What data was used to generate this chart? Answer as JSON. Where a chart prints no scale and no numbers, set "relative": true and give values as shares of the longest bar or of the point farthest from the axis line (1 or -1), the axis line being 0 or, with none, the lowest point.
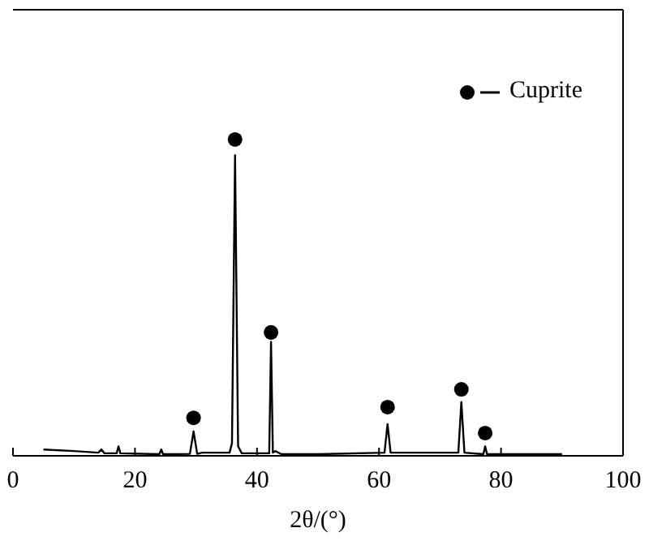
{
  "chart_data": {
    "type": "line",
    "relative": true,
    "xlabel": "2θ/(°)",
    "xlim": [
      0,
      100
    ],
    "xticks": [
      0,
      20,
      40,
      60,
      80,
      100
    ],
    "tick_labels": "x",
    "grid": false,
    "legend": "top right",
    "series": [
      {
        "color": "#000000",
        "marker": "none",
        "x": [
          5,
          10,
          14,
          14.5,
          15,
          17,
          17.3,
          17.6,
          24,
          24.3,
          24.6,
          29,
          29.6,
          30.2,
          31,
          35.5,
          35.9,
          36.4,
          36.9,
          37.5,
          42,
          42.3,
          42.6,
          43,
          44,
          50,
          60.9,
          61.4,
          61.9,
          73,
          73.5,
          74,
          77.1,
          77.4,
          77.7,
          80,
          90
        ],
        "values": [
          0.02,
          0.015,
          0.01,
          0.02,
          0.008,
          0.008,
          0.03,
          0.008,
          0.005,
          0.02,
          0.005,
          0.006,
          0.077,
          0.006,
          0.01,
          0.01,
          0.04,
          0.95,
          0.03,
          0.008,
          0.008,
          0.36,
          0.01,
          0.015,
          0.005,
          0.005,
          0.01,
          0.1,
          0.01,
          0.01,
          0.17,
          0.01,
          0.005,
          0.03,
          0.005,
          0.005,
          0.005
        ]
      },
      {
        "type": "scatter",
        "name": "Cuprite",
        "color": "#000000",
        "marker": "circle",
        "x": [
          29.6,
          36.4,
          42.3,
          61.4,
          73.5,
          77.4
        ],
        "values": [
          0.12,
          1,
          0.39,
          0.154,
          0.21,
          0.072
        ]
      }
    ]
  }
}
